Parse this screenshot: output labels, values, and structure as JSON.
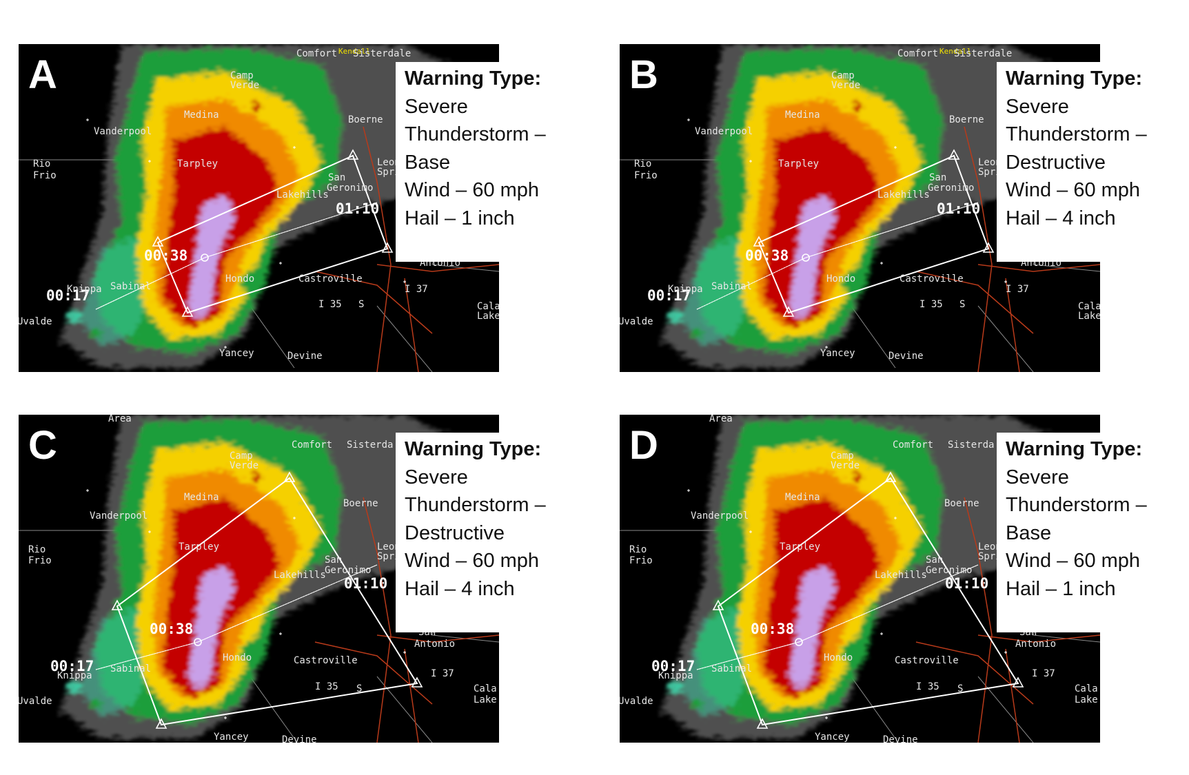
{
  "panels": [
    {
      "letter": "A",
      "polygon": "narrow",
      "info": {
        "heading": "Warning Type:",
        "lines": [
          "Severe",
          "Thunderstorm –",
          "Base",
          "Wind – 60 mph",
          "Hail – 1 inch"
        ]
      },
      "times": [
        "00:17",
        "00:38",
        "01:10"
      ],
      "places": [
        "Comfort",
        "Kendall",
        "Sisterdale",
        "Camp",
        "Verde",
        "Medina",
        "Boerne",
        "Vanderpool",
        "Rio",
        "Frio",
        "Tarpley",
        "San",
        "Geronimo",
        "Lakehills",
        "Leon",
        "Spri",
        "Antonio",
        "Sabinal",
        "Hondo",
        "Castroville",
        "Knippa",
        "Uvalde",
        "Yancey",
        "Devine",
        "Cala",
        "Lake",
        "I 35",
        "I 37",
        "S"
      ]
    },
    {
      "letter": "B",
      "polygon": "narrow",
      "info": {
        "heading": "Warning Type:",
        "lines": [
          "Severe",
          "Thunderstorm –",
          "Destructive",
          "Wind – 60 mph",
          "Hail – 4 inch"
        ]
      },
      "times": [
        "00:17",
        "00:38",
        "01:10"
      ],
      "places": [
        "Comfort",
        "Kendall",
        "Sisterdale",
        "Camp",
        "Verde",
        "Medina",
        "Boerne",
        "Vanderpool",
        "Rio",
        "Frio",
        "Tarpley",
        "San",
        "Geronimo",
        "Lakehills",
        "Leon",
        "Spri",
        "Antonio",
        "Sabinal",
        "Hondo",
        "Castroville",
        "Knippa",
        "Uvalde",
        "Yancey",
        "Devine",
        "Cala",
        "Lake",
        "I 35",
        "I 37",
        "S"
      ]
    },
    {
      "letter": "C",
      "polygon": "wide",
      "info": {
        "heading": "Warning Type:",
        "lines": [
          "Severe",
          "Thunderstorm –",
          "Destructive",
          "Wind – 60 mph",
          "Hail – 4 inch"
        ]
      },
      "times": [
        "00:17",
        "00:38",
        "01:10"
      ],
      "places": [
        "Area",
        "Comfort",
        "Sisterda",
        "Camp",
        "Verde",
        "Medina",
        "Boerne",
        "Vanderpool",
        "Rio",
        "Frio",
        "Tarpley",
        "San",
        "Geronimo",
        "Lakehills",
        "Leon",
        "Spri",
        "San",
        "Antonio",
        "Sabinal",
        "Hondo",
        "Castroville",
        "Knippa",
        "Uvalde",
        "Yancey",
        "Devine",
        "Cala",
        "Lake",
        "I 35",
        "I 37",
        "S"
      ]
    },
    {
      "letter": "D",
      "polygon": "wide",
      "info": {
        "heading": "Warning Type:",
        "lines": [
          "Severe",
          "Thunderstorm –",
          "Base",
          "Wind – 60 mph",
          "Hail – 1 inch"
        ]
      },
      "times": [
        "00:17",
        "00:38",
        "01:10"
      ],
      "places": [
        "Area",
        "Comfort",
        "Sisterda",
        "Camp",
        "Verde",
        "Medina",
        "Boerne",
        "Vanderpool",
        "Rio",
        "Frio",
        "Tarpley",
        "San",
        "Geronimo",
        "Lakehills",
        "Leon",
        "Spri",
        "San",
        "Antonio",
        "Sabinal",
        "Hondo",
        "Castroville",
        "Knippa",
        "Uvalde",
        "Yancey",
        "Devine",
        "Cala",
        "Lake",
        "I 35",
        "I 37",
        "S"
      ]
    }
  ],
  "colors": {
    "background": "#000000",
    "green": "#1f9e3a",
    "teal": "#3cc7a0",
    "yellow": "#f5d000",
    "orange": "#f08a00",
    "red": "#c40000",
    "magenta": "#c8a0e8",
    "gray": "#9a9a9a",
    "roads": "#b83a1a",
    "polygon": "#ffffff"
  }
}
